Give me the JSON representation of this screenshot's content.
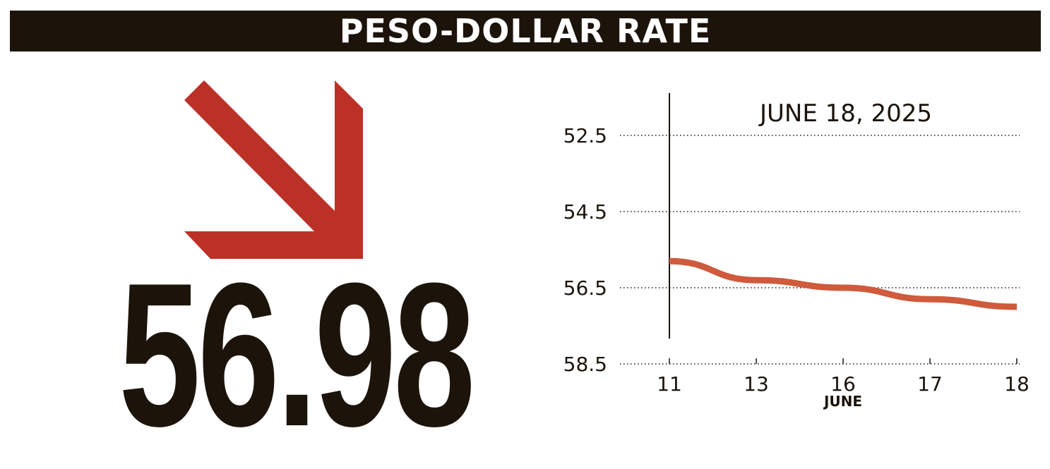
{
  "header": {
    "title": "PESO-DOLLAR RATE"
  },
  "rate": {
    "value": "56.98",
    "direction": "down"
  },
  "colors": {
    "bar": "#1c140b",
    "arrow": "#bc3127",
    "line": "#cf5a3c",
    "text": "#1c140b"
  },
  "chart_data": {
    "type": "line",
    "title": "JUNE 18, 2025",
    "xlabel": "JUNE",
    "ylabel": "",
    "categories": [
      "11",
      "13",
      "16",
      "17",
      "18"
    ],
    "y_ticks": [
      "52.5",
      "54.5",
      "56.5",
      "58.5"
    ],
    "y_tick_values": [
      52.5,
      54.5,
      56.5,
      58.5
    ],
    "ylim": [
      52.5,
      58.5
    ],
    "y_inverted": true,
    "grid": "horizontal dotted",
    "series": [
      {
        "values": [
          55.8,
          56.3,
          56.5,
          56.8,
          57.0
        ]
      }
    ]
  }
}
